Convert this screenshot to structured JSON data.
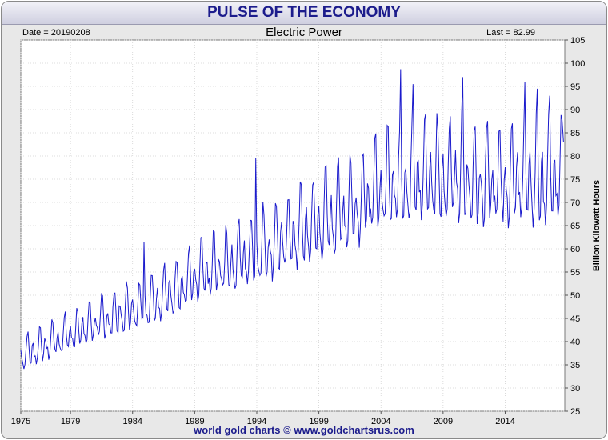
{
  "header": {
    "title": "PULSE OF THE ECONOMY"
  },
  "info": {
    "date": "Date = 20190208",
    "last": "Last = 82.99"
  },
  "footer": {
    "credit": "world gold charts © www.goldchartsrus.com"
  },
  "colors": {
    "line": "#1a1acc",
    "title": "#1c1c8c",
    "grid": "#d2d2d2"
  },
  "chart_data": {
    "type": "line",
    "title": "Electric Power",
    "ylabel": "Billion Kilowatt Hours",
    "xlim": [
      1975,
      2018.8
    ],
    "ylim": [
      25,
      105
    ],
    "x_ticks": [
      1975,
      1979,
      1984,
      1989,
      1994,
      1999,
      2004,
      2009,
      2014
    ],
    "y_ticks": [
      25,
      30,
      35,
      40,
      45,
      50,
      55,
      60,
      65,
      70,
      75,
      80,
      85,
      90,
      95,
      100,
      105
    ],
    "grid": true,
    "series": [
      {
        "trend_years": [
          1975,
          1980,
          1985,
          1990,
          1995,
          2000,
          2003,
          2005,
          2008,
          2010,
          2012,
          2014,
          2016,
          2018.8
        ],
        "trend_values": [
          37,
          43,
          48,
          55,
          60.5,
          67,
          71,
          75,
          76,
          75.5,
          74.5,
          75,
          75,
          75
        ],
        "seasonal_amplitude_years": [
          1975,
          1985,
          1995,
          2005,
          2018.8
        ],
        "seasonal_amplitude_values": [
          4,
          6,
          9,
          12,
          13
        ],
        "peak_highlights": [
          {
            "x": 1984.9,
            "y": 61.5
          },
          {
            "x": 1993.9,
            "y": 79.5
          },
          {
            "x": 2005.6,
            "y": 98.7
          },
          {
            "x": 2006.6,
            "y": 95.5
          },
          {
            "x": 2010.6,
            "y": 97.0
          },
          {
            "x": 2015.6,
            "y": 96.0
          },
          {
            "x": 2016.6,
            "y": 94.5
          },
          {
            "x": 2017.6,
            "y": 93.0
          }
        ],
        "last": {
          "x": 2018.7,
          "y": 82.99
        }
      }
    ]
  }
}
